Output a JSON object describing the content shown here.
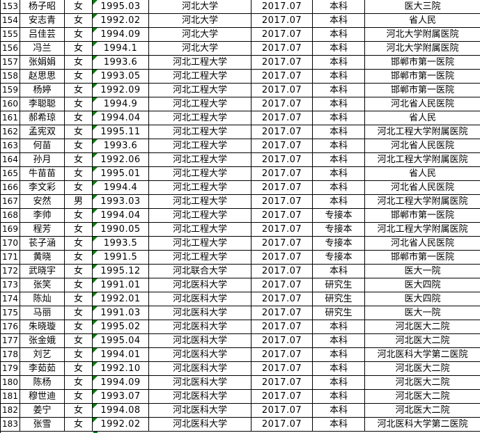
{
  "colors": {
    "grid": "#000000",
    "error_triangle": "#008000",
    "background": "#ffffff",
    "text": "#000000"
  },
  "table": {
    "rows": [
      {
        "index": "153",
        "name": "杨子昭",
        "gender": "女",
        "birth_date": "1995.03",
        "university": "河北大学",
        "grad_date": "2017.07",
        "degree": "本科",
        "hospital": "医大三院",
        "error_marker": true
      },
      {
        "index": "154",
        "name": "安志青",
        "gender": "女",
        "birth_date": "1992.02",
        "university": "河北大学",
        "grad_date": "2017.07",
        "degree": "本科",
        "hospital": "省人民",
        "error_marker": true
      },
      {
        "index": "155",
        "name": "吕佳芸",
        "gender": "女",
        "birth_date": "1994.09",
        "university": "河北大学",
        "grad_date": "2017.07",
        "degree": "本科",
        "hospital": "河北大学附属医院",
        "error_marker": true
      },
      {
        "index": "156",
        "name": "冯兰",
        "gender": "女",
        "birth_date": "1994.1",
        "university": "河北大学",
        "grad_date": "2017.07",
        "degree": "本科",
        "hospital": "河北大学附属医院",
        "error_marker": true
      },
      {
        "index": "157",
        "name": "张娟娟",
        "gender": "女",
        "birth_date": "1993.6",
        "university": "河北工程大学",
        "grad_date": "2017.07",
        "degree": "本科",
        "hospital": "邯郸市第一医院",
        "error_marker": true
      },
      {
        "index": "158",
        "name": "赵思思",
        "gender": "女",
        "birth_date": "1993.05",
        "university": "河北工程大学",
        "grad_date": "2017.07",
        "degree": "本科",
        "hospital": "邯郸市第一医院",
        "error_marker": true
      },
      {
        "index": "159",
        "name": "杨婷",
        "gender": "女",
        "birth_date": "1992.09",
        "university": "河北工程大学",
        "grad_date": "2017.07",
        "degree": "本科",
        "hospital": "邯郸市第一医院",
        "error_marker": true
      },
      {
        "index": "160",
        "name": "李聪聪",
        "gender": "女",
        "birth_date": "1994.9",
        "university": "河北工程大学",
        "grad_date": "2017.07",
        "degree": "本科",
        "hospital": "河北省人民医院",
        "error_marker": true
      },
      {
        "index": "161",
        "name": "郝希琼",
        "gender": "女",
        "birth_date": "1994.04",
        "university": "河北工程大学",
        "grad_date": "2017.07",
        "degree": "本科",
        "hospital": "省人民",
        "error_marker": true
      },
      {
        "index": "162",
        "name": "孟宪双",
        "gender": "女",
        "birth_date": "1995.11",
        "university": "河北工程大学",
        "grad_date": "2017.07",
        "degree": "本科",
        "hospital": "河北工程大学附属医院",
        "error_marker": true
      },
      {
        "index": "163",
        "name": "何苗",
        "gender": "女",
        "birth_date": "1993.6",
        "university": "河北工程大学",
        "grad_date": "2017.07",
        "degree": "本科",
        "hospital": "河北省人民医院",
        "error_marker": true
      },
      {
        "index": "164",
        "name": "孙月",
        "gender": "女",
        "birth_date": "1992.06",
        "university": "河北工程大学",
        "grad_date": "2017.07",
        "degree": "本科",
        "hospital": "河北工程大学附属医院",
        "error_marker": true
      },
      {
        "index": "165",
        "name": "牛苗苗",
        "gender": "女",
        "birth_date": "1995.01",
        "university": "河北工程大学",
        "grad_date": "2017.07",
        "degree": "本科",
        "hospital": "省人民",
        "error_marker": true
      },
      {
        "index": "166",
        "name": "李文彩",
        "gender": "女",
        "birth_date": "1994.4",
        "university": "河北工程大学",
        "grad_date": "2017.07",
        "degree": "本科",
        "hospital": "河北省人民医院",
        "error_marker": true
      },
      {
        "index": "167",
        "name": "安然",
        "gender": "男",
        "birth_date": "1993.03",
        "university": "河北工程大学",
        "grad_date": "2017.07",
        "degree": "本科",
        "hospital": "河北工程大学附属医院",
        "error_marker": true
      },
      {
        "index": "168",
        "name": "李帅",
        "gender": "女",
        "birth_date": "1994.04",
        "university": "河北工程大学",
        "grad_date": "2017.07",
        "degree": "专接本",
        "hospital": "邯郸市第一医院",
        "error_marker": true
      },
      {
        "index": "169",
        "name": "程芳",
        "gender": "女",
        "birth_date": "1990.05",
        "university": "河北工程大学",
        "grad_date": "2017.07",
        "degree": "专接本",
        "hospital": "河北工程大学附属医院",
        "error_marker": true
      },
      {
        "index": "170",
        "name": "苌子涵",
        "gender": "女",
        "birth_date": "1993.5",
        "university": "河北工程大学",
        "grad_date": "2017.07",
        "degree": "专接本",
        "hospital": "河北省人民医院",
        "error_marker": true
      },
      {
        "index": "171",
        "name": "黄晓",
        "gender": "女",
        "birth_date": "1991.5",
        "university": "河北工程大学",
        "grad_date": "2017.07",
        "degree": "专接本",
        "hospital": "邯郸市第一医院",
        "error_marker": true
      },
      {
        "index": "172",
        "name": "武晓宇",
        "gender": "女",
        "birth_date": "1995.12",
        "university": "河北联合大学",
        "grad_date": "2017.07",
        "degree": "本科",
        "hospital": "医大一院",
        "error_marker": true
      },
      {
        "index": "173",
        "name": "张笑",
        "gender": "女",
        "birth_date": "1991.01",
        "university": "河北医科大学",
        "grad_date": "2017.07",
        "degree": "研究生",
        "hospital": "医大四院",
        "error_marker": true
      },
      {
        "index": "174",
        "name": "陈灿",
        "gender": "女",
        "birth_date": "1992.01",
        "university": "河北医科大学",
        "grad_date": "2017.07",
        "degree": "研究生",
        "hospital": "医大四院",
        "error_marker": true
      },
      {
        "index": "175",
        "name": "马丽",
        "gender": "女",
        "birth_date": "1991.03",
        "university": "河北医科大学",
        "grad_date": "2017.07",
        "degree": "研究生",
        "hospital": "医大一院",
        "error_marker": true
      },
      {
        "index": "176",
        "name": "朱晓璇",
        "gender": "女",
        "birth_date": "1995.02",
        "university": "河北医科大学",
        "grad_date": "2017.07",
        "degree": "本科",
        "hospital": "河北医大二院",
        "error_marker": true
      },
      {
        "index": "177",
        "name": "张金娥",
        "gender": "女",
        "birth_date": "1995.04",
        "university": "河北医科大学",
        "grad_date": "2017.07",
        "degree": "本科",
        "hospital": "河北医大二院",
        "error_marker": true
      },
      {
        "index": "178",
        "name": "刘艺",
        "gender": "女",
        "birth_date": "1994.01",
        "university": "河北医科大学",
        "grad_date": "2017.07",
        "degree": "本科",
        "hospital": "河北医科大学第二医院",
        "error_marker": true
      },
      {
        "index": "179",
        "name": "李茹茹",
        "gender": "女",
        "birth_date": "1992.10",
        "university": "河北医科大学",
        "grad_date": "2017.07",
        "degree": "本科",
        "hospital": "河北医大二院",
        "error_marker": true
      },
      {
        "index": "180",
        "name": "陈杨",
        "gender": "女",
        "birth_date": "1994.09",
        "university": "河北医科大学",
        "grad_date": "2017.07",
        "degree": "本科",
        "hospital": "河北医大二院",
        "error_marker": true
      },
      {
        "index": "181",
        "name": "穆世迪",
        "gender": "女",
        "birth_date": "1993.07",
        "university": "河北医科大学",
        "grad_date": "2017.07",
        "degree": "本科",
        "hospital": "河北医大二院",
        "error_marker": true
      },
      {
        "index": "182",
        "name": "姜宁",
        "gender": "女",
        "birth_date": "1994.08",
        "university": "河北医科大学",
        "grad_date": "2017.07",
        "degree": "本科",
        "hospital": "河北医大二院",
        "error_marker": true
      },
      {
        "index": "183",
        "name": "张雪",
        "gender": "女",
        "birth_date": "1992.02",
        "university": "河北医科大学",
        "grad_date": "2017.07",
        "degree": "本科",
        "hospital": "河北医科大学第二医院",
        "error_marker": true
      }
    ]
  }
}
